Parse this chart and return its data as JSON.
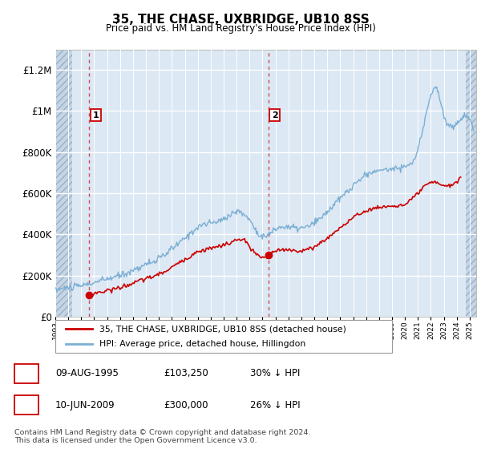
{
  "title": "35, THE CHASE, UXBRIDGE, UB10 8SS",
  "subtitle": "Price paid vs. HM Land Registry's House Price Index (HPI)",
  "hpi_color": "#7bafd4",
  "price_color": "#cc0000",
  "plot_bg_color": "#dce8f4",
  "grid_color": "#ffffff",
  "purchase1_year": 1995.62,
  "purchase1_price": 103250,
  "purchase2_year": 2009.45,
  "purchase2_price": 300000,
  "legend_label1": "35, THE CHASE, UXBRIDGE, UB10 8SS (detached house)",
  "legend_label2": "HPI: Average price, detached house, Hillingdon",
  "table_row1": [
    "1",
    "09-AUG-1995",
    "£103,250",
    "30% ↓ HPI"
  ],
  "table_row2": [
    "2",
    "10-JUN-2009",
    "£300,000",
    "26% ↓ HPI"
  ],
  "footnote": "Contains HM Land Registry data © Crown copyright and database right 2024.\nThis data is licensed under the Open Government Licence v3.0.",
  "xmin": 1993.0,
  "xmax": 2025.5,
  "ymin": 0,
  "ymax": 1300000,
  "yticks": [
    0,
    200000,
    400000,
    600000,
    800000,
    1000000,
    1200000
  ],
  "ytick_labels": [
    "£0",
    "£200K",
    "£400K",
    "£600K",
    "£800K",
    "£1M",
    "£1.2M"
  ]
}
